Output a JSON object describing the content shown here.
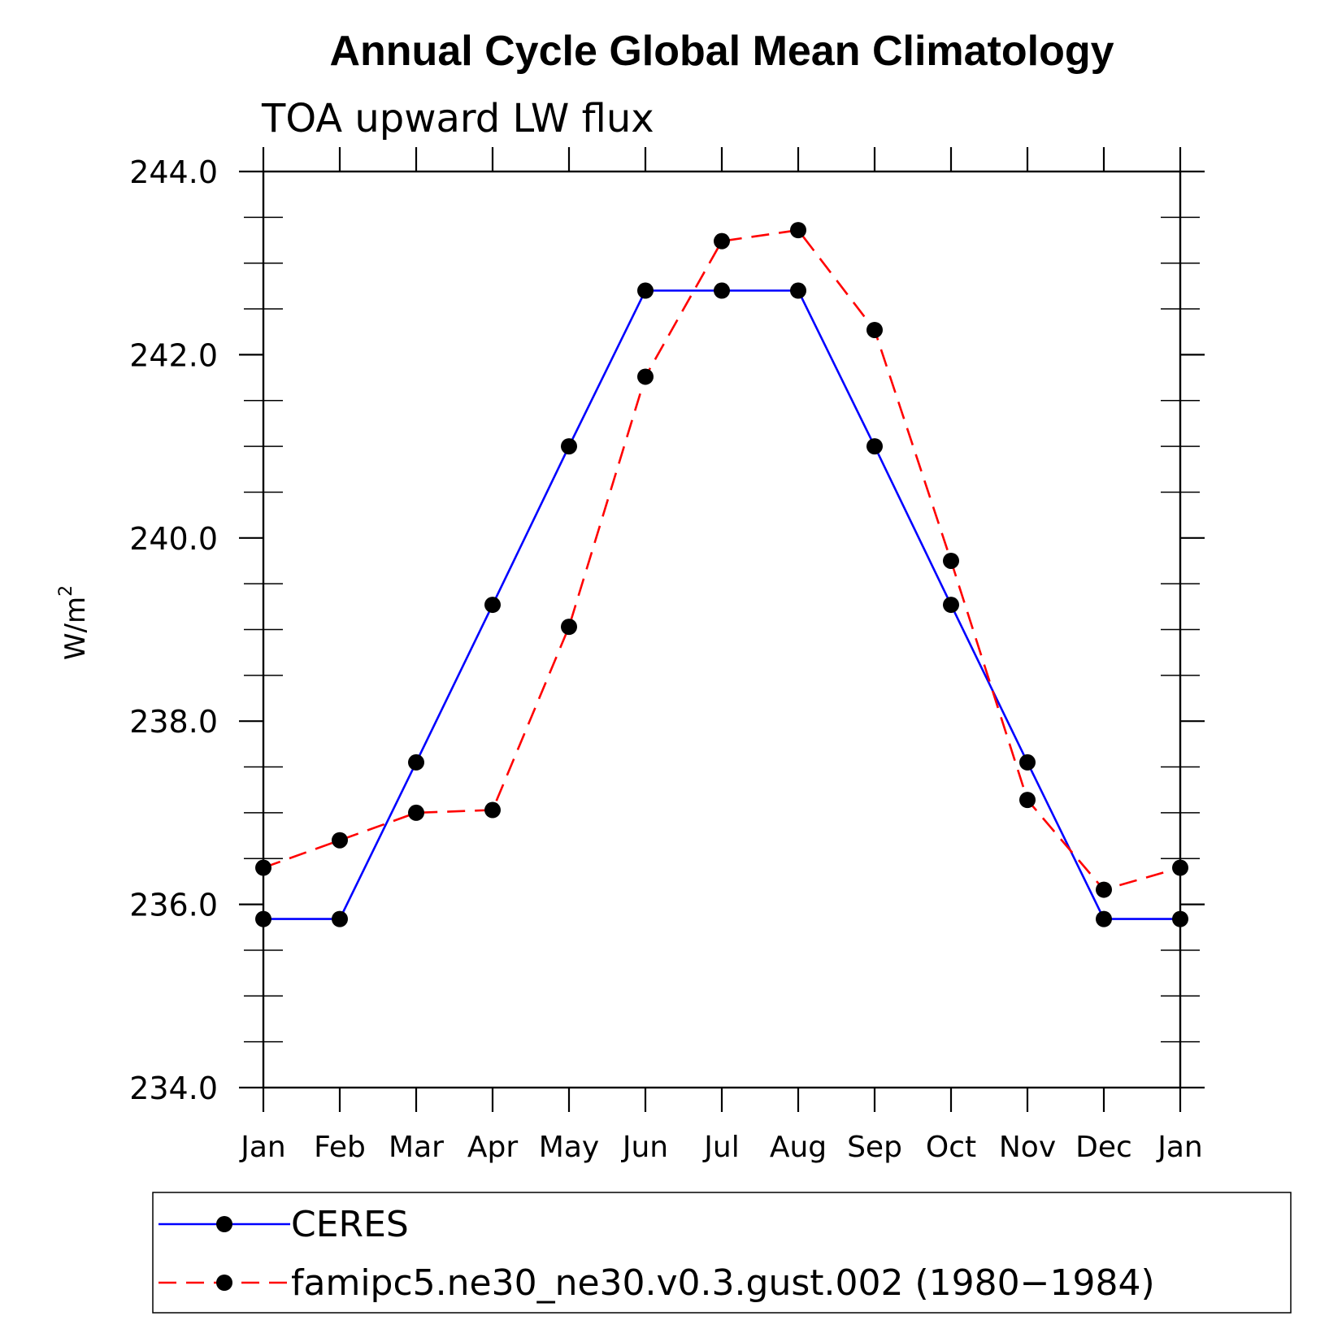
{
  "chart_data": {
    "type": "line",
    "title": "Annual Cycle Global Mean Climatology",
    "subtitle": "TOA upward LW flux",
    "ylabel": "W/m",
    "ylabel_sup": "2",
    "xlabel": "",
    "ylim": [
      234.0,
      244.0
    ],
    "y_major_ticks": [
      234.0,
      236.0,
      238.0,
      240.0,
      242.0,
      244.0
    ],
    "y_tick_labels": [
      "234.0",
      "236.0",
      "238.0",
      "240.0",
      "242.0",
      "244.0"
    ],
    "y_minor_step": 0.5,
    "categories": [
      "Jan",
      "Feb",
      "Mar",
      "Apr",
      "May",
      "Jun",
      "Jul",
      "Aug",
      "Sep",
      "Oct",
      "Nov",
      "Dec",
      "Jan"
    ],
    "series": [
      {
        "name": "CERES",
        "color": "#0000ff",
        "dash": "solid",
        "marker": "dot",
        "values": [
          235.84,
          235.84,
          237.55,
          239.27,
          241.0,
          242.7,
          242.7,
          242.7,
          241.0,
          239.27,
          237.55,
          235.84,
          235.84
        ]
      },
      {
        "name": "famipc5.ne30_ne30.v0.3.gust.002 (1980−1984)",
        "color": "#ff0000",
        "dash": "dashed",
        "marker": "dot",
        "values": [
          236.4,
          236.7,
          237.0,
          237.03,
          239.03,
          241.76,
          243.24,
          243.36,
          242.27,
          239.75,
          237.14,
          236.16,
          236.4
        ]
      }
    ],
    "legend_position": "bottom"
  }
}
